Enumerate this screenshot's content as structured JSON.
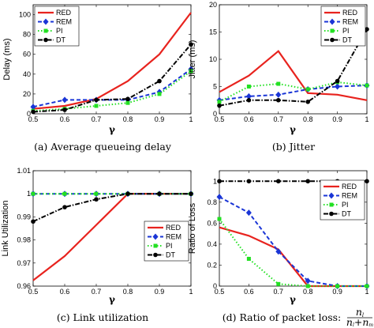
{
  "legend_names": [
    "RED",
    "REM",
    "PI",
    "DT"
  ],
  "series_colors": [
    "#e8231e",
    "#1a35d6",
    "#22e022",
    "#000000"
  ],
  "chart_data": [
    {
      "type": "line",
      "panel": "a",
      "ylabel": "Delay (ms)",
      "xlabel": "γ",
      "caption": "(a)  Average queueing delay",
      "x": [
        0.5,
        0.6,
        0.7,
        0.8,
        0.9,
        1
      ],
      "xticks": [
        "0.5",
        "0.6",
        "0.7",
        "0.8",
        "0.9",
        "1"
      ],
      "yticks": [
        "0",
        "20",
        "40",
        "60",
        "80",
        "100"
      ],
      "ytick_values": [
        0,
        20,
        40,
        60,
        80,
        100
      ],
      "xlim": [
        0.5,
        1
      ],
      "ylim": [
        0,
        110
      ],
      "legend": "top-left",
      "series": [
        {
          "name": "RED",
          "values": [
            5,
            8,
            15,
            33,
            60,
            102
          ]
        },
        {
          "name": "REM",
          "values": [
            7,
            14,
            14,
            14,
            22,
            45
          ]
        },
        {
          "name": "PI",
          "values": [
            3,
            5,
            8,
            11,
            20,
            43
          ]
        },
        {
          "name": "DT",
          "values": [
            2,
            4,
            14,
            15,
            33,
            70
          ]
        }
      ]
    },
    {
      "type": "line",
      "panel": "b",
      "ylabel": "Jitter (ms)",
      "xlabel": "γ",
      "caption": "(b)  Jitter",
      "x": [
        0.5,
        0.6,
        0.7,
        0.8,
        0.9,
        1
      ],
      "xticks": [
        "0.5",
        "0.6",
        "0.7",
        "0.8",
        "0.9",
        "1"
      ],
      "yticks": [
        "0",
        "5",
        "10",
        "15",
        "20"
      ],
      "ytick_values": [
        0,
        5,
        10,
        15,
        20
      ],
      "xlim": [
        0.5,
        1
      ],
      "ylim": [
        0,
        20
      ],
      "legend": "top-right",
      "series": [
        {
          "name": "RED",
          "values": [
            4,
            7,
            11.5,
            3.8,
            3.5,
            2.5
          ]
        },
        {
          "name": "REM",
          "values": [
            2.5,
            3.2,
            3.5,
            4.5,
            5,
            5.2
          ]
        },
        {
          "name": "PI",
          "values": [
            2.2,
            5,
            5.5,
            4.5,
            5.8,
            5.2
          ]
        },
        {
          "name": "DT",
          "values": [
            1.5,
            2.5,
            2.5,
            2.2,
            6,
            15.5
          ]
        }
      ]
    },
    {
      "type": "line",
      "panel": "c",
      "ylabel": "Link Utilization",
      "xlabel": "γ",
      "caption": "(c)  Link utilization",
      "x": [
        0.5,
        0.6,
        0.7,
        0.8,
        0.9,
        1
      ],
      "xticks": [
        "0.5",
        "0.6",
        "0.7",
        "0.8",
        "0.9",
        "1"
      ],
      "yticks": [
        "0.96",
        "0.97",
        "0.98",
        "0.99",
        "1",
        "1.01"
      ],
      "ytick_values": [
        0.96,
        0.97,
        0.98,
        0.99,
        1,
        1.01
      ],
      "xlim": [
        0.5,
        1
      ],
      "ylim": [
        0.96,
        1.01
      ],
      "legend": "bottom-right",
      "series": [
        {
          "name": "RED",
          "values": [
            0.9625,
            0.973,
            0.9865,
            1.0,
            1.0,
            1.0
          ]
        },
        {
          "name": "REM",
          "values": [
            1.0,
            1.0,
            1.0,
            1.0,
            1.0,
            1.0
          ]
        },
        {
          "name": "PI",
          "values": [
            1.0,
            1.0,
            1.0,
            1.0,
            1.0,
            1.0
          ]
        },
        {
          "name": "DT",
          "values": [
            0.988,
            0.9942,
            0.9976,
            1.0,
            1.0,
            1.0
          ]
        }
      ]
    },
    {
      "type": "line",
      "panel": "d",
      "ylabel": "Ratio of Loss",
      "xlabel": "γ",
      "caption": "(d)  Ratio of packet loss:",
      "x": [
        0.5,
        0.6,
        0.7,
        0.8,
        0.9,
        1
      ],
      "xticks": [
        "0.5",
        "0.6",
        "0.7",
        "0.8",
        "0.9",
        "1"
      ],
      "yticks": [
        "0",
        "0.2",
        "0.4",
        "0.6",
        "0.8",
        "1"
      ],
      "ytick_values": [
        0,
        0.2,
        0.4,
        0.6,
        0.8,
        1
      ],
      "xlim": [
        0.5,
        1
      ],
      "ylim": [
        0,
        1.1
      ],
      "legend": "right",
      "series": [
        {
          "name": "RED",
          "values": [
            0.56,
            0.48,
            0.35,
            0.0,
            0.0,
            0.0
          ]
        },
        {
          "name": "REM",
          "values": [
            0.85,
            0.7,
            0.33,
            0.05,
            0.0,
            0.0
          ]
        },
        {
          "name": "PI",
          "values": [
            0.64,
            0.26,
            0.02,
            0.0,
            0.0,
            0.0
          ]
        },
        {
          "name": "DT",
          "values": [
            1.0,
            1.0,
            1.0,
            1.0,
            1.0,
            1.0
          ]
        }
      ]
    }
  ]
}
